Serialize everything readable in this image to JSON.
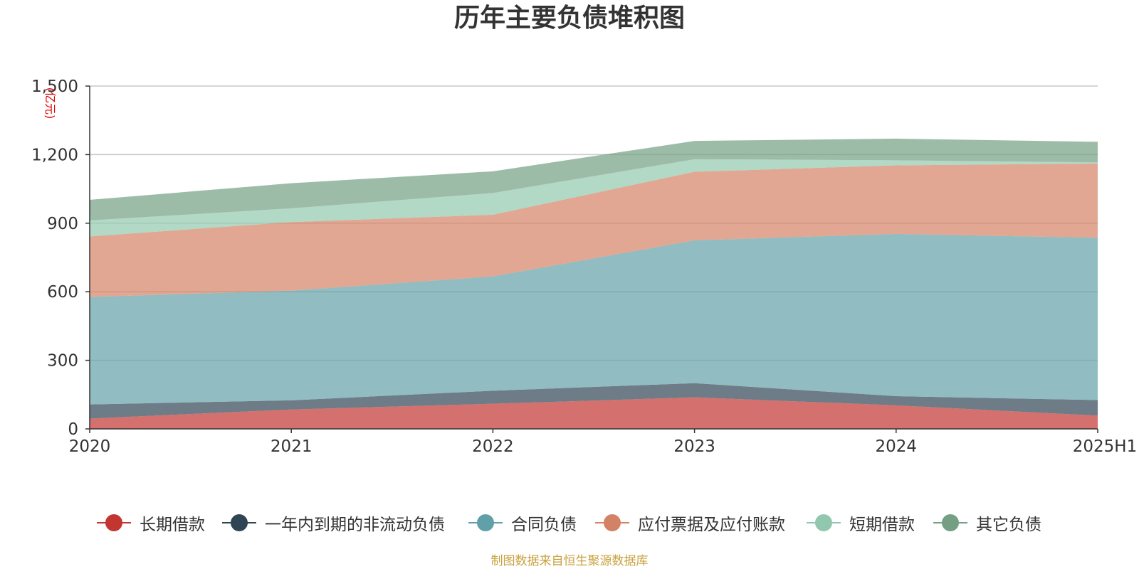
{
  "title": "历年主要负债堆积图",
  "source_note": "制图数据来自恒生聚源数据库",
  "colors": {
    "长期借款": "#c23531",
    "一年内到期的非流动负债": "#2f4554",
    "合同负债": "#61a0a8",
    "应付票据及应付账款": "#d48265",
    "短期借款": "#91c7ae",
    "其它负债": "#749f83"
  },
  "chart_data": {
    "type": "area",
    "stacked": true,
    "title": "历年主要负债堆积图",
    "ylabel": "(亿元)",
    "x": [
      "2020",
      "2021",
      "2022",
      "2023",
      "2024",
      "2025H1"
    ],
    "ylim": [
      0,
      1500
    ],
    "yticks": [
      0,
      300,
      600,
      900,
      1200,
      1500
    ],
    "ytick_labels": [
      "0",
      "300",
      "600",
      "900",
      "1,200",
      "1,500"
    ],
    "grid": true,
    "legend_position": "bottom",
    "series": [
      {
        "name": "长期借款",
        "values": [
          45,
          85,
          110,
          138,
          103,
          58
        ]
      },
      {
        "name": "一年内到期的非流动负债",
        "values": [
          62,
          40,
          57,
          62,
          40,
          68
        ]
      },
      {
        "name": "合同负债",
        "values": [
          470,
          480,
          500,
          625,
          710,
          710
        ]
      },
      {
        "name": "应付票据及应付账款",
        "values": [
          265,
          300,
          270,
          300,
          300,
          325
        ]
      },
      {
        "name": "短期借款",
        "values": [
          70,
          60,
          95,
          55,
          22,
          5
        ]
      },
      {
        "name": "其它负债",
        "values": [
          90,
          110,
          95,
          80,
          95,
          90
        ]
      }
    ]
  }
}
